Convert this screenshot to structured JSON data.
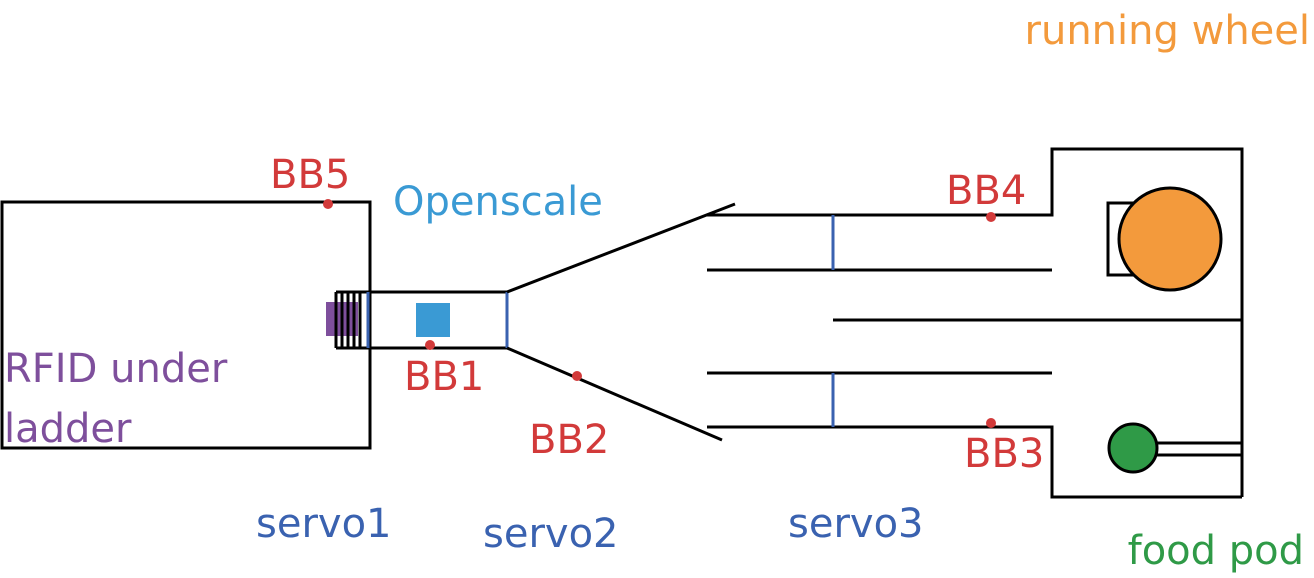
{
  "labels": {
    "running_wheel": "running wheel",
    "openscale": "Openscale",
    "bb5": "BB5",
    "bb4": "BB4",
    "bb1": "BB1",
    "bb2": "BB2",
    "bb3": "BB3",
    "rfid_line1": "RFID under",
    "rfid_line2": "ladder",
    "servo1": "servo1",
    "servo2": "servo2",
    "servo3": "servo3",
    "food_pod": "food pod"
  },
  "colors": {
    "outline": "#000000",
    "beam_break": "#d23a3a",
    "servo": "#3a62b0",
    "openscale": "#3a9ad4",
    "rfid": "#7e4f9c",
    "running_wheel": "#f39a3c",
    "food_pod": "#2f9a47"
  }
}
